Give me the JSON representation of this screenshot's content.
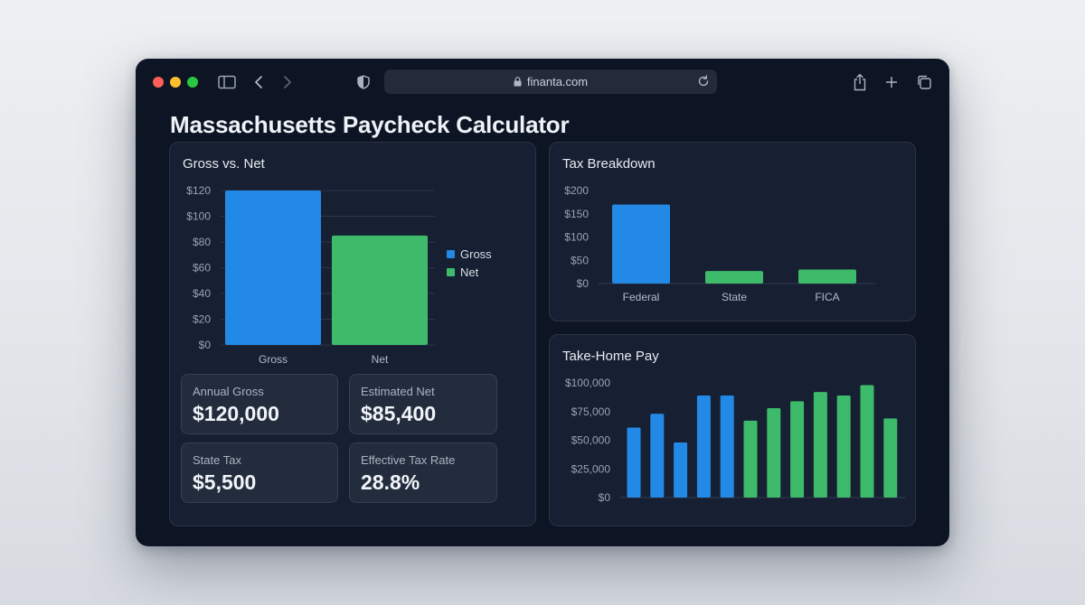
{
  "browser": {
    "url": "finanta.com",
    "icons": [
      "sidebar-icon",
      "back-icon",
      "forward-icon",
      "shield-icon",
      "lock-icon",
      "reload-icon",
      "share-icon",
      "new-tab-icon",
      "tabs-icon"
    ]
  },
  "page": {
    "title": "Massachusetts Paycheck Calculator"
  },
  "panels": {
    "gross_net": {
      "title": "Gross vs. Net"
    },
    "tax": {
      "title": "Tax Breakdown"
    },
    "take_home": {
      "title": "Take-Home Pay"
    }
  },
  "stats": [
    {
      "label": "Annual Gross",
      "value": "$120,000"
    },
    {
      "label": "Estimated Net",
      "value": "$85,400"
    },
    {
      "label": "State Tax",
      "value": "$5,500"
    },
    {
      "label": "Effective Tax Rate",
      "value": "28.8%"
    }
  ],
  "colors": {
    "gross": "#2389e6",
    "net": "#3dba6a",
    "accent_blue": "#2389e6",
    "accent_green": "#3dba6a"
  },
  "chart_data": [
    {
      "type": "bar",
      "title": "Gross vs. Net",
      "categories": [
        "Gross",
        "Net"
      ],
      "values": [
        120,
        85
      ],
      "colors": [
        "#2389e6",
        "#3dba6a"
      ],
      "ylim": [
        0,
        120
      ],
      "yticks": [
        0,
        20,
        40,
        60,
        80,
        100,
        120
      ],
      "ytick_labels": [
        "$0",
        "$20",
        "$40",
        "$60",
        "$80",
        "$100",
        "$120"
      ],
      "legend": [
        "Gross",
        "Net"
      ],
      "legend_position": "right",
      "grid": true
    },
    {
      "type": "bar",
      "title": "Tax Breakdown",
      "categories": [
        "Federal",
        "State",
        "FICA"
      ],
      "values": [
        170,
        27,
        30
      ],
      "colors": [
        "#2389e6",
        "#3dba6a",
        "#3dba6a"
      ],
      "ylim": [
        0,
        200
      ],
      "yticks": [
        0,
        50,
        100,
        150,
        200
      ],
      "ytick_labels": [
        "$0",
        "$50",
        "$100",
        "$150",
        "$200"
      ],
      "grid": false
    },
    {
      "type": "bar",
      "title": "Take-Home Pay",
      "values": [
        61000,
        73000,
        48000,
        89000,
        89000,
        67000,
        78000,
        84000,
        92000,
        89000,
        98000,
        69000
      ],
      "colors": [
        "#2389e6",
        "#2389e6",
        "#2389e6",
        "#2389e6",
        "#2389e6",
        "#3dba6a",
        "#3dba6a",
        "#3dba6a",
        "#3dba6a",
        "#3dba6a",
        "#3dba6a",
        "#3dba6a"
      ],
      "ylim": [
        0,
        100000
      ],
      "yticks": [
        0,
        25000,
        50000,
        75000,
        100000
      ],
      "ytick_labels": [
        "$0",
        "$25,000",
        "$50,000",
        "$75,000",
        "$100,000"
      ],
      "grid": false
    }
  ]
}
